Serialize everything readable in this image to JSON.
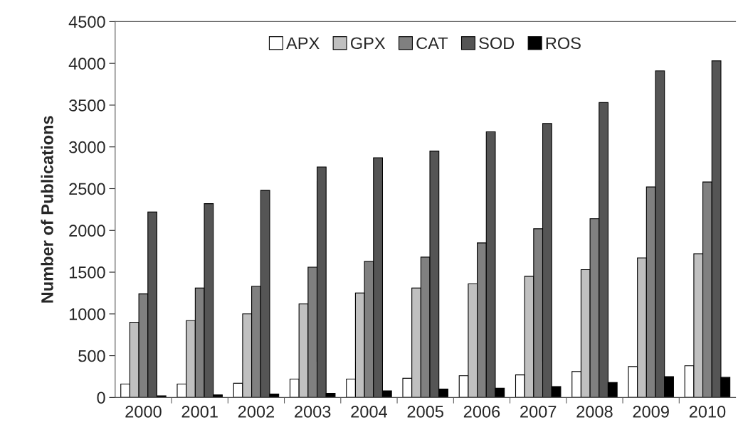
{
  "chart_data": {
    "type": "bar",
    "ylabel": "Number of Publications",
    "categories": [
      "2000",
      "2001",
      "2002",
      "2003",
      "2004",
      "2005",
      "2006",
      "2007",
      "2008",
      "2009",
      "2010"
    ],
    "series": [
      {
        "name": "APX",
        "color": "#ffffff",
        "values": [
          160,
          160,
          170,
          220,
          220,
          230,
          260,
          270,
          310,
          370,
          380
        ]
      },
      {
        "name": "GPX",
        "color": "#c0c0c0",
        "values": [
          900,
          920,
          1000,
          1120,
          1250,
          1310,
          1360,
          1450,
          1530,
          1670,
          1720
        ]
      },
      {
        "name": "CAT",
        "color": "#808080",
        "values": [
          1240,
          1310,
          1330,
          1560,
          1630,
          1680,
          1850,
          2020,
          2140,
          2520,
          2580
        ]
      },
      {
        "name": "SOD",
        "color": "#555555",
        "values": [
          2220,
          2320,
          2480,
          2760,
          2870,
          2950,
          3180,
          3280,
          3530,
          3910,
          4030
        ]
      },
      {
        "name": "ROS",
        "color": "#000000",
        "values": [
          20,
          30,
          40,
          50,
          80,
          100,
          110,
          130,
          180,
          250,
          240
        ]
      }
    ],
    "ylim": [
      0,
      4500
    ],
    "yticks": [
      0,
      500,
      1000,
      1500,
      2000,
      2500,
      3000,
      3500,
      4000,
      4500
    ],
    "grid": false,
    "legend": "top"
  }
}
